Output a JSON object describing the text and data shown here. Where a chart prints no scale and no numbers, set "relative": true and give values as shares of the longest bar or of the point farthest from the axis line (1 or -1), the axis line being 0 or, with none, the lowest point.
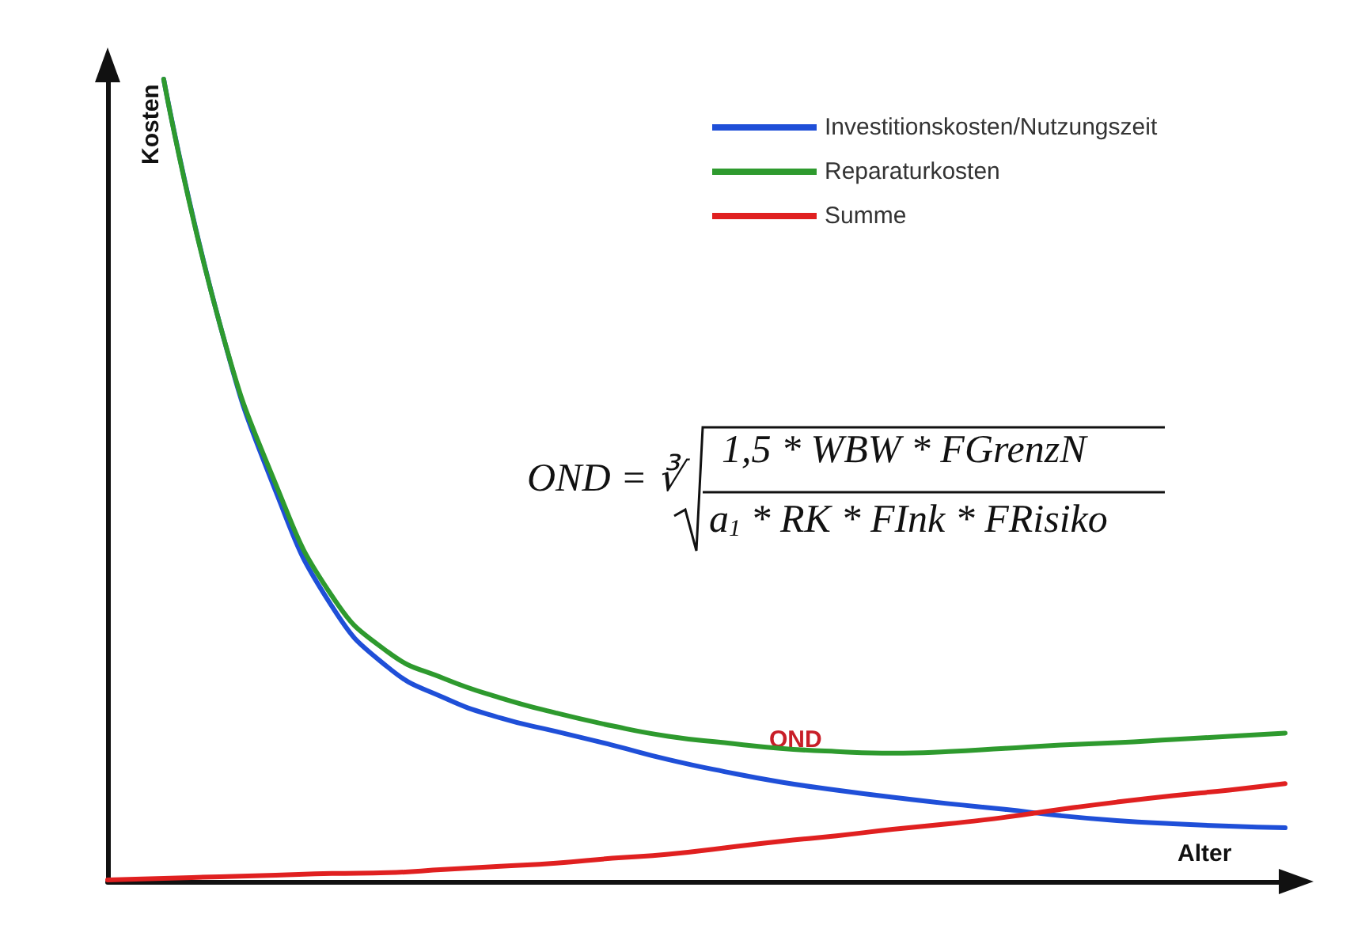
{
  "chart_data": {
    "type": "line",
    "relative": true,
    "xlabel": "Alter",
    "ylabel": "Kosten",
    "legend": "top right",
    "grid": false,
    "marker": "none",
    "line_style": "solid",
    "categories": [
      null,
      null,
      null,
      null,
      null,
      null,
      null,
      null,
      null,
      null,
      null,
      null,
      null,
      null,
      null,
      null,
      null,
      null,
      null,
      null,
      null,
      null
    ],
    "series": [
      {
        "name": "Investitionskosten/Nutzungszeit",
        "color": "#1f4fd8",
        "values": [
          null,
          1.0,
          0.695,
          0.486,
          0.343,
          0.267,
          0.229,
          0.204,
          0.187,
          0.17,
          0.152,
          0.137,
          0.124,
          0.114,
          0.105,
          0.097,
          0.09,
          0.082,
          0.076,
          0.072,
          0.069,
          0.067
        ]
      },
      {
        "name": "Reparaturkosten",
        "color": "#2e9a2e",
        "values": [
          null,
          1.0,
          0.695,
          0.495,
          0.356,
          0.286,
          0.253,
          0.229,
          0.21,
          0.194,
          0.181,
          0.173,
          0.166,
          0.162,
          0.16,
          0.162,
          0.166,
          0.17,
          0.173,
          0.177,
          0.181,
          0.185
        ]
      },
      {
        "name": "Summe",
        "color": "#e02020",
        "values": [
          0.002,
          0.004,
          0.006,
          0.008,
          0.01,
          0.011,
          0.015,
          0.019,
          0.023,
          0.029,
          0.034,
          0.042,
          0.05,
          0.057,
          0.065,
          0.072,
          0.08,
          0.09,
          0.099,
          0.107,
          0.114,
          0.122
        ]
      }
    ],
    "annotations": [
      "OND = ∛",
      "1,5 * WBW * FGrenzN",
      "a$_{1}$ * RK * FInk * FRisiko",
      "OND"
    ]
  }
}
